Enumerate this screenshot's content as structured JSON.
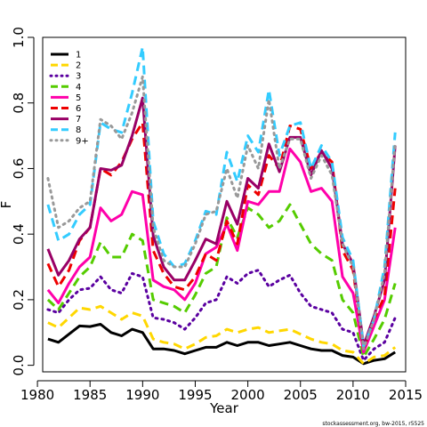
{
  "chart_data": {
    "type": "line",
    "title": "",
    "xlabel": "Year",
    "ylabel": "F",
    "xlim": [
      1980.5,
      2015
    ],
    "ylim": [
      -0.02,
      1.0
    ],
    "xticks": [
      1980,
      1985,
      1990,
      1995,
      2000,
      2005,
      2010,
      2015
    ],
    "yticks": [
      0.0,
      0.2,
      0.4,
      0.6,
      0.8,
      1.0
    ],
    "grid": false,
    "legend_position": "top-left",
    "credit": "stockassessment.org, bw-2015, r5525",
    "x": [
      1981,
      1982,
      1983,
      1984,
      1985,
      1986,
      1987,
      1988,
      1989,
      1990,
      1991,
      1992,
      1993,
      1994,
      1995,
      1996,
      1997,
      1998,
      1999,
      2000,
      2001,
      2002,
      2003,
      2004,
      2005,
      2006,
      2007,
      2008,
      2009,
      2010,
      2011,
      2012,
      2013,
      2014
    ],
    "series": [
      {
        "name": "1",
        "color": "#000000",
        "dash": "solid",
        "values": [
          0.08,
          0.07,
          0.095,
          0.12,
          0.118,
          0.125,
          0.1,
          0.09,
          0.11,
          0.1,
          0.05,
          0.05,
          0.045,
          0.035,
          0.045,
          0.055,
          0.055,
          0.07,
          0.06,
          0.07,
          0.07,
          0.06,
          0.065,
          0.07,
          0.06,
          0.05,
          0.045,
          0.045,
          0.03,
          0.025,
          0.005,
          0.015,
          0.02,
          0.04
        ]
      },
      {
        "name": "2",
        "color": "#ffd700",
        "dash": "long",
        "values": [
          0.13,
          0.115,
          0.145,
          0.175,
          0.17,
          0.18,
          0.16,
          0.14,
          0.16,
          0.15,
          0.08,
          0.07,
          0.065,
          0.05,
          0.065,
          0.085,
          0.09,
          0.11,
          0.1,
          0.11,
          0.115,
          0.1,
          0.105,
          0.11,
          0.095,
          0.08,
          0.07,
          0.065,
          0.045,
          0.04,
          0.005,
          0.025,
          0.03,
          0.055
        ]
      },
      {
        "name": "3",
        "color": "#5a00a0",
        "dash": "dot",
        "values": [
          0.17,
          0.16,
          0.2,
          0.23,
          0.235,
          0.27,
          0.23,
          0.22,
          0.28,
          0.27,
          0.145,
          0.14,
          0.13,
          0.11,
          0.145,
          0.19,
          0.2,
          0.27,
          0.25,
          0.28,
          0.29,
          0.24,
          0.26,
          0.275,
          0.22,
          0.18,
          0.17,
          0.16,
          0.11,
          0.1,
          0.015,
          0.05,
          0.07,
          0.145
        ]
      },
      {
        "name": "4",
        "color": "#55cc00",
        "dash": "long",
        "values": [
          0.2,
          0.17,
          0.22,
          0.27,
          0.3,
          0.375,
          0.33,
          0.33,
          0.4,
          0.38,
          0.2,
          0.19,
          0.18,
          0.16,
          0.215,
          0.28,
          0.3,
          0.45,
          0.39,
          0.48,
          0.46,
          0.42,
          0.44,
          0.49,
          0.43,
          0.37,
          0.34,
          0.32,
          0.2,
          0.16,
          0.025,
          0.08,
          0.14,
          0.25
        ]
      },
      {
        "name": "5",
        "color": "#ff00aa",
        "dash": "solid",
        "values": [
          0.23,
          0.19,
          0.25,
          0.3,
          0.33,
          0.48,
          0.44,
          0.46,
          0.53,
          0.52,
          0.26,
          0.24,
          0.23,
          0.2,
          0.25,
          0.34,
          0.36,
          0.43,
          0.35,
          0.5,
          0.49,
          0.53,
          0.53,
          0.66,
          0.62,
          0.53,
          0.54,
          0.5,
          0.27,
          0.22,
          0.04,
          0.12,
          0.2,
          0.42
        ]
      },
      {
        "name": "6",
        "color": "#ee0000",
        "dash": "long",
        "values": [
          0.31,
          0.24,
          0.29,
          0.38,
          0.42,
          0.6,
          0.58,
          0.62,
          0.69,
          0.74,
          0.35,
          0.28,
          0.24,
          0.23,
          0.27,
          0.34,
          0.32,
          0.44,
          0.37,
          0.55,
          0.52,
          0.64,
          0.6,
          0.73,
          0.72,
          0.6,
          0.65,
          0.62,
          0.35,
          0.29,
          0.05,
          0.14,
          0.21,
          0.54
        ]
      },
      {
        "name": "7",
        "color": "#990066",
        "dash": "solid",
        "values": [
          0.355,
          0.275,
          0.32,
          0.385,
          0.42,
          0.6,
          0.595,
          0.61,
          0.7,
          0.815,
          0.395,
          0.3,
          0.26,
          0.26,
          0.32,
          0.385,
          0.37,
          0.5,
          0.43,
          0.57,
          0.54,
          0.675,
          0.59,
          0.695,
          0.695,
          0.58,
          0.655,
          0.6,
          0.37,
          0.31,
          0.06,
          0.15,
          0.26,
          0.67
        ]
      },
      {
        "name": "8",
        "color": "#33ccff",
        "dash": "long",
        "values": [
          0.49,
          0.38,
          0.4,
          0.46,
          0.49,
          0.74,
          0.72,
          0.71,
          0.83,
          0.97,
          0.44,
          0.34,
          0.3,
          0.31,
          0.38,
          0.47,
          0.46,
          0.65,
          0.56,
          0.7,
          0.65,
          0.84,
          0.64,
          0.73,
          0.74,
          0.6,
          0.67,
          0.62,
          0.39,
          0.32,
          0.055,
          0.14,
          0.3,
          0.71
        ]
      },
      {
        "name": "9+",
        "color": "#999999",
        "dash": "dot",
        "values": [
          0.57,
          0.42,
          0.44,
          0.48,
          0.5,
          0.75,
          0.73,
          0.69,
          0.77,
          0.88,
          0.42,
          0.32,
          0.3,
          0.3,
          0.37,
          0.46,
          0.47,
          0.6,
          0.51,
          0.67,
          0.6,
          0.81,
          0.6,
          0.69,
          0.69,
          0.57,
          0.64,
          0.58,
          0.37,
          0.3,
          0.05,
          0.14,
          0.28,
          0.68
        ]
      }
    ]
  }
}
